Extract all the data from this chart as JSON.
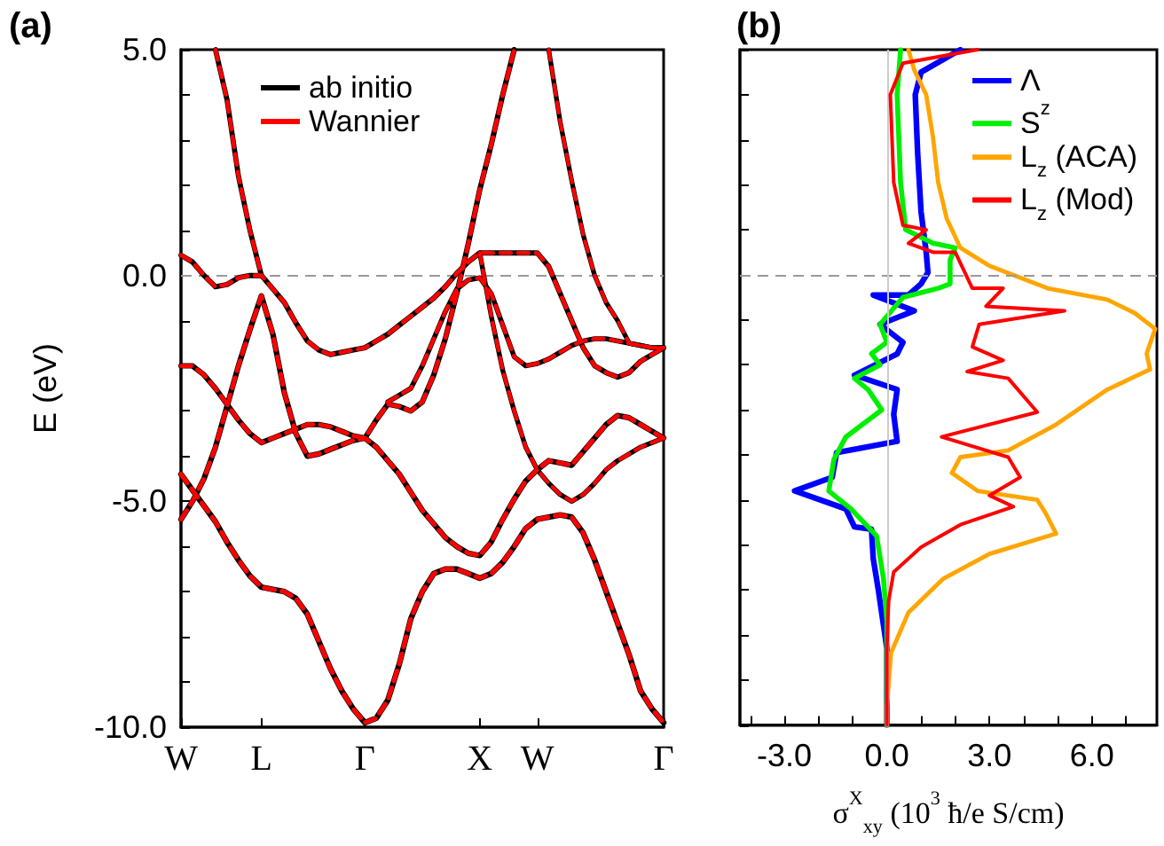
{
  "chart_data": [
    {
      "type": "line",
      "title": "(a)",
      "ylabel": "E (eV)",
      "categories": [
        "W",
        null,
        null,
        null,
        null,
        null,
        null,
        "L",
        null,
        null,
        null,
        null,
        null,
        null,
        null,
        null,
        "Γ",
        null,
        null,
        null,
        null,
        null,
        null,
        null,
        null,
        null,
        "X",
        null,
        null,
        null,
        null,
        "W",
        null,
        null,
        null,
        null,
        null,
        null,
        null,
        null,
        null,
        null,
        "Γ"
      ],
      "ylim": [
        -10,
        5
      ],
      "yticks": [
        {
          "value": -10,
          "label": "-10.0"
        },
        {
          "value": -9,
          "label": null
        },
        {
          "value": -8,
          "label": null
        },
        {
          "value": -7,
          "label": null
        },
        {
          "value": -6,
          "label": null
        },
        {
          "value": -5,
          "label": "-5.0"
        },
        {
          "value": -4,
          "label": null
        },
        {
          "value": -3,
          "label": null
        },
        {
          "value": -2,
          "label": null
        },
        {
          "value": -1,
          "label": null
        },
        {
          "value": 0,
          "label": "0.0"
        },
        {
          "value": 1,
          "label": null
        },
        {
          "value": 2,
          "label": null
        },
        {
          "value": 3,
          "label": null
        },
        {
          "value": 4,
          "label": null
        },
        {
          "value": 5,
          "label": "5.0"
        }
      ],
      "series": [
        {
          "name": "ab initio",
          "color": "#000000",
          "line_style": "solid",
          "values": [
            -4.4,
            -4.75,
            -5.1,
            -5.45,
            -5.9,
            -6.3,
            -6.65,
            -6.9,
            -6.95,
            -7.0,
            -7.15,
            -7.5,
            -8.1,
            -8.7,
            -9.2,
            -9.6,
            -9.9,
            -9.8,
            -9.4,
            -8.6,
            -7.6,
            -7.0,
            -6.6,
            -6.5,
            -6.5,
            -6.6,
            -6.7,
            -6.6,
            -6.35,
            -6.0,
            -5.6,
            -5.4,
            -5.35,
            -5.3,
            -5.35,
            -5.7,
            -6.3,
            -7.0,
            -7.7,
            -8.4,
            -9.2,
            -9.6,
            -9.9
          ]
        },
        {
          "color": "#000000",
          "line_style": "solid",
          "values": [
            -5.4,
            -5.0,
            -4.5,
            -3.8,
            -2.9,
            -2.0,
            -1.2,
            -0.45,
            -1.3,
            -2.6,
            -3.5,
            -4.0,
            -3.95,
            -3.85,
            -3.75,
            -3.65,
            -3.6,
            -3.8,
            -4.1,
            -4.4,
            -4.8,
            -5.2,
            -5.5,
            -5.8,
            -6.0,
            -6.15,
            -6.2,
            -5.9,
            -5.4,
            -4.95,
            -4.55,
            -4.3,
            -4.1,
            -4.15,
            -4.2,
            -3.9,
            -3.6,
            -3.3,
            -3.1,
            -3.15,
            -3.3,
            -3.45,
            -3.6
          ]
        },
        {
          "color": "#000000",
          "line_style": "solid",
          "values": [
            -2.0,
            -2.0,
            -2.2,
            -2.5,
            -2.85,
            -3.2,
            -3.5,
            -3.7,
            -3.6,
            -3.5,
            -3.4,
            -3.3,
            -3.3,
            -3.35,
            -3.45,
            -3.55,
            -3.6,
            -3.2,
            -2.85,
            -2.9,
            -3.0,
            -2.8,
            -2.2,
            -1.4,
            -0.4,
            0.7,
            1.9,
            2.9,
            4.0,
            5.0,
            null,
            null,
            null,
            null,
            null,
            null,
            null,
            null,
            null,
            null,
            null,
            null,
            null
          ]
        },
        {
          "color": "#000000",
          "line_style": "solid",
          "values": [
            0.45,
            0.3,
            0.0,
            -0.25,
            -0.2,
            -0.05,
            0.0,
            0.0,
            -0.3,
            -0.6,
            -1.05,
            -1.45,
            -1.65,
            -1.75,
            -1.7,
            -1.65,
            -1.6,
            -1.45,
            -1.3,
            -1.1,
            -0.9,
            -0.7,
            -0.5,
            -0.25,
            0.05,
            0.3,
            0.5,
            0.5,
            0.5,
            0.5,
            0.5,
            0.5,
            0.2,
            -0.4,
            -1.0,
            -1.6,
            -2.0,
            -2.15,
            -2.25,
            -2.15,
            -1.9,
            -1.75,
            -1.6
          ]
        },
        {
          "color": "#000000",
          "line_style": "solid",
          "values": [
            null,
            null,
            null,
            5.0,
            3.9,
            2.2,
            1.0,
            0.0,
            null,
            null,
            null,
            null,
            null,
            null,
            null,
            null,
            null,
            null,
            null,
            null,
            null,
            null,
            null,
            null,
            null,
            null,
            null,
            null,
            null,
            null,
            null,
            null,
            null,
            null,
            null,
            null,
            null,
            null,
            null,
            null,
            null,
            null,
            null
          ]
        },
        {
          "color": "#000000",
          "line_style": "solid",
          "values": [
            null,
            null,
            null,
            null,
            null,
            null,
            null,
            null,
            null,
            null,
            null,
            null,
            null,
            null,
            null,
            null,
            null,
            null,
            -2.8,
            -2.65,
            -2.5,
            -2.0,
            -1.4,
            -0.8,
            -0.3,
            -0.1,
            -0.05,
            -0.4,
            -1.1,
            -1.8,
            -2.0,
            -1.95,
            -1.85,
            -1.7,
            -1.55,
            -1.45,
            -1.4,
            -1.4,
            -1.45,
            -1.5,
            -1.55,
            -1.6,
            -1.6
          ]
        },
        {
          "color": "#000000",
          "line_style": "solid",
          "values": [
            null,
            null,
            null,
            null,
            null,
            null,
            null,
            null,
            null,
            null,
            null,
            null,
            null,
            null,
            null,
            null,
            null,
            null,
            null,
            null,
            null,
            null,
            null,
            null,
            null,
            null,
            0.5,
            -0.9,
            -2.1,
            -3.0,
            -3.8,
            -4.3,
            -4.6,
            -4.85,
            -5.0,
            -4.85,
            -4.6,
            -4.3,
            -4.1,
            -3.95,
            -3.8,
            -3.7,
            -3.6
          ]
        },
        {
          "color": "#000000",
          "line_style": "solid",
          "values": [
            null,
            null,
            null,
            null,
            null,
            null,
            null,
            null,
            null,
            null,
            null,
            null,
            null,
            null,
            null,
            null,
            null,
            null,
            null,
            null,
            null,
            null,
            null,
            null,
            null,
            null,
            null,
            null,
            null,
            null,
            null,
            null,
            5.0,
            3.4,
            2.1,
            0.9,
            0.0,
            -0.6,
            -1.0,
            -1.5,
            -1.55,
            -1.6,
            -1.6
          ]
        },
        {
          "name": "Wannier",
          "color": "#ff0000",
          "line_style": "dashed",
          "values": [
            -4.4,
            -4.75,
            -5.1,
            -5.45,
            -5.9,
            -6.3,
            -6.65,
            -6.9,
            -6.95,
            -7.0,
            -7.15,
            -7.5,
            -8.1,
            -8.7,
            -9.2,
            -9.6,
            -9.9,
            -9.8,
            -9.4,
            -8.6,
            -7.6,
            -7.0,
            -6.6,
            -6.5,
            -6.5,
            -6.6,
            -6.7,
            -6.6,
            -6.35,
            -6.0,
            -5.6,
            -5.4,
            -5.35,
            -5.3,
            -5.35,
            -5.7,
            -6.3,
            -7.0,
            -7.7,
            -8.4,
            -9.2,
            -9.6,
            -9.9
          ]
        },
        {
          "color": "#ff0000",
          "line_style": "dashed",
          "values": [
            -5.4,
            -5.0,
            -4.5,
            -3.8,
            -2.9,
            -2.0,
            -1.2,
            -0.45,
            -1.3,
            -2.6,
            -3.5,
            -4.0,
            -3.95,
            -3.85,
            -3.75,
            -3.65,
            -3.6,
            -3.8,
            -4.1,
            -4.4,
            -4.8,
            -5.2,
            -5.5,
            -5.8,
            -6.0,
            -6.15,
            -6.2,
            -5.9,
            -5.4,
            -4.95,
            -4.55,
            -4.3,
            -4.1,
            -4.15,
            -4.2,
            -3.9,
            -3.6,
            -3.3,
            -3.1,
            -3.15,
            -3.3,
            -3.45,
            -3.6
          ]
        },
        {
          "color": "#ff0000",
          "line_style": "dashed",
          "values": [
            -2.0,
            -2.0,
            -2.2,
            -2.5,
            -2.85,
            -3.2,
            -3.5,
            -3.7,
            -3.6,
            -3.5,
            -3.4,
            -3.3,
            -3.3,
            -3.35,
            -3.45,
            -3.55,
            -3.6,
            -3.2,
            -2.85,
            -2.9,
            -3.0,
            -2.8,
            -2.2,
            -1.4,
            -0.4,
            0.7,
            1.9,
            2.9,
            4.0,
            5.0,
            null,
            null,
            null,
            null,
            null,
            null,
            null,
            null,
            null,
            null,
            null,
            null,
            null
          ]
        },
        {
          "color": "#ff0000",
          "line_style": "dashed",
          "values": [
            0.45,
            0.3,
            0.0,
            -0.25,
            -0.2,
            -0.05,
            0.0,
            0.0,
            -0.3,
            -0.6,
            -1.05,
            -1.45,
            -1.65,
            -1.75,
            -1.7,
            -1.65,
            -1.6,
            -1.45,
            -1.3,
            -1.1,
            -0.9,
            -0.7,
            -0.5,
            -0.25,
            0.05,
            0.3,
            0.5,
            0.5,
            0.5,
            0.5,
            0.5,
            0.5,
            0.2,
            -0.4,
            -1.0,
            -1.6,
            -2.0,
            -2.15,
            -2.25,
            -2.15,
            -1.9,
            -1.75,
            -1.6
          ]
        },
        {
          "color": "#ff0000",
          "line_style": "dashed",
          "values": [
            null,
            null,
            null,
            5.0,
            3.9,
            2.2,
            1.0,
            0.0,
            null,
            null,
            null,
            null,
            null,
            null,
            null,
            null,
            null,
            null,
            null,
            null,
            null,
            null,
            null,
            null,
            null,
            null,
            null,
            null,
            null,
            null,
            null,
            null,
            null,
            null,
            null,
            null,
            null,
            null,
            null,
            null,
            null,
            null,
            null
          ]
        },
        {
          "color": "#ff0000",
          "line_style": "dashed",
          "values": [
            null,
            null,
            null,
            null,
            null,
            null,
            null,
            null,
            null,
            null,
            null,
            null,
            null,
            null,
            null,
            null,
            null,
            null,
            -2.8,
            -2.65,
            -2.5,
            -2.0,
            -1.4,
            -0.8,
            -0.3,
            -0.1,
            -0.05,
            -0.4,
            -1.1,
            -1.8,
            -2.0,
            -1.95,
            -1.85,
            -1.7,
            -1.55,
            -1.45,
            -1.4,
            -1.4,
            -1.45,
            -1.5,
            -1.55,
            -1.6,
            -1.6
          ]
        },
        {
          "color": "#ff0000",
          "line_style": "dashed",
          "values": [
            null,
            null,
            null,
            null,
            null,
            null,
            null,
            null,
            null,
            null,
            null,
            null,
            null,
            null,
            null,
            null,
            null,
            null,
            null,
            null,
            null,
            null,
            null,
            null,
            null,
            null,
            0.5,
            -0.9,
            -2.1,
            -3.0,
            -3.8,
            -4.3,
            -4.6,
            -4.85,
            -5.0,
            -4.85,
            -4.6,
            -4.3,
            -4.1,
            -3.95,
            -3.8,
            -3.7,
            -3.6
          ]
        },
        {
          "color": "#ff0000",
          "line_style": "dashed",
          "values": [
            null,
            null,
            null,
            null,
            null,
            null,
            null,
            null,
            null,
            null,
            null,
            null,
            null,
            null,
            null,
            null,
            null,
            null,
            null,
            null,
            null,
            null,
            null,
            null,
            null,
            null,
            null,
            null,
            null,
            null,
            null,
            null,
            5.0,
            3.4,
            2.1,
            0.9,
            0.0,
            -0.6,
            -1.0,
            -1.5,
            -1.55,
            -1.6,
            -1.6
          ]
        }
      ],
      "ref_lines": [
        {
          "axis": "y",
          "value": 0,
          "label": null,
          "color": "#999999",
          "line_style": "dashed"
        }
      ],
      "legend": "top left",
      "grid": false,
      "marker": "none"
    },
    {
      "type": "line",
      "title": "(b)",
      "xlabel": "σ$^{X}$$_{xy}$ (10$^{3}$ ħ/e S/cm)",
      "xlim": [
        -4.3,
        7.9
      ],
      "xticks": [
        {
          "value": -4,
          "label": null
        },
        {
          "value": -3,
          "label": "-3.0"
        },
        {
          "value": -2,
          "label": null
        },
        {
          "value": -1,
          "label": null
        },
        {
          "value": 0,
          "label": "0.0"
        },
        {
          "value": 1,
          "label": null
        },
        {
          "value": 2,
          "label": null
        },
        {
          "value": 3,
          "label": "3.0"
        },
        {
          "value": 4,
          "label": null
        },
        {
          "value": 5,
          "label": null
        },
        {
          "value": 6,
          "label": "6.0"
        },
        {
          "value": 7,
          "label": null
        }
      ],
      "ylim": [
        -10,
        5
      ],
      "yticks": [
        {
          "value": -10,
          "label": null
        },
        {
          "value": -9,
          "label": null
        },
        {
          "value": -8,
          "label": null
        },
        {
          "value": -7,
          "label": null
        },
        {
          "value": -6,
          "label": null
        },
        {
          "value": -5,
          "label": null
        },
        {
          "value": -4,
          "label": null
        },
        {
          "value": -3,
          "label": null
        },
        {
          "value": -2,
          "label": null
        },
        {
          "value": -1,
          "label": null
        },
        {
          "value": 0,
          "label": null
        },
        {
          "value": 1,
          "label": null
        },
        {
          "value": 2,
          "label": null
        },
        {
          "value": 3,
          "label": null
        },
        {
          "value": 4,
          "label": null
        },
        {
          "value": 5,
          "label": null
        }
      ],
      "tick_labels": "x",
      "series": [
        {
          "name": "Λ",
          "color": "#0000ff",
          "x": [
            2.15,
            1.0,
            0.83,
            0.9,
            1.0,
            1.15,
            1.2,
            1.0,
            0.63,
            -0.4,
            0.8,
            -0.2,
            0.47,
            0.3,
            -0.95,
            0.3,
            0.2,
            0.3,
            -1.47,
            -1.6,
            -2.7,
            -1.2,
            -0.95,
            -0.45,
            -0.4,
            -0.25,
            0.0,
            0.0
          ],
          "values": [
            5.0,
            4.5,
            4.0,
            2.7,
            1.4,
            0.5,
            0.05,
            -0.2,
            -0.45,
            -0.45,
            -0.8,
            -1.1,
            -1.5,
            -1.76,
            -2.23,
            -2.55,
            -3.1,
            -3.7,
            -3.95,
            -4.5,
            -4.8,
            -5.2,
            -5.6,
            -5.65,
            -6.3,
            -7.0,
            -8.3,
            -10.0
          ]
        },
        {
          "name": "S$^{z}$",
          "color": "#00ee00",
          "x": [
            0.4,
            0.3,
            0.4,
            0.55,
            1.35,
            2.0,
            1.85,
            1.85,
            1.5,
            0.47,
            -0.2,
            0.0,
            -0.45,
            -0.2,
            -0.95,
            -0.55,
            -0.15,
            -1.2,
            -1.55,
            -1.7,
            -1.05,
            -0.3,
            -0.1,
            0.0,
            0.0
          ],
          "values": [
            5.0,
            4.0,
            2.05,
            1.0,
            0.7,
            0.6,
            0.33,
            -0.2,
            -0.3,
            -0.5,
            -1.1,
            -1.5,
            -1.75,
            -2.0,
            -2.3,
            -2.55,
            -3.0,
            -3.6,
            -4.1,
            -4.8,
            -5.2,
            -5.8,
            -6.75,
            -7.7,
            -10.0
          ]
        },
        {
          "name": "L$_{z}$ (ACA)",
          "color": "#ffa500",
          "x": [
            0.63,
            0.8,
            1.15,
            1.35,
            1.5,
            1.75,
            2.15,
            3.0,
            4.7,
            6.45,
            7.25,
            7.85,
            7.6,
            7.7,
            6.45,
            4.9,
            3.55,
            2.15,
            1.9,
            2.65,
            4.4,
            4.65,
            4.95,
            3.0,
            1.65,
            0.63,
            0.12,
            0.0,
            0.0
          ],
          "values": [
            5.0,
            4.55,
            4.0,
            3.05,
            2.05,
            1.25,
            0.6,
            0.2,
            -0.3,
            -0.55,
            -0.85,
            -1.2,
            -1.75,
            -2.1,
            -2.55,
            -3.35,
            -3.9,
            -4.05,
            -4.4,
            -4.8,
            -5.0,
            -5.3,
            -5.75,
            -6.2,
            -6.75,
            -7.5,
            -8.4,
            -9.6,
            -10.0
          ]
        },
        {
          "name": "L$_{z}$ (Mod)",
          "color": "#ff0000",
          "x": [
            2.65,
            0.47,
            0.1,
            0.2,
            0.47,
            1.15,
            0.63,
            1.35,
            2.0,
            2.5,
            3.4,
            2.9,
            5.2,
            2.7,
            2.5,
            3.4,
            2.35,
            3.55,
            4.4,
            1.6,
            3.55,
            3.9,
            3.0,
            3.7,
            2.15,
            1.0,
            0.2,
            0.05,
            0.0,
            0.0
          ],
          "values": [
            5.0,
            4.7,
            4.0,
            2.05,
            1.1,
            1.0,
            0.7,
            0.5,
            0.5,
            -0.3,
            -0.3,
            -0.7,
            -0.8,
            -1.1,
            -1.6,
            -1.9,
            -2.15,
            -2.3,
            -3.05,
            -3.6,
            -4.05,
            -4.5,
            -4.9,
            -5.15,
            -5.55,
            -6.05,
            -6.6,
            -7.25,
            -8.3,
            -10.0
          ]
        }
      ],
      "ref_lines": [
        {
          "axis": "y",
          "value": 0,
          "label": null,
          "color": "#999999",
          "line_style": "dashed"
        },
        {
          "axis": "x",
          "value": 0,
          "label": null,
          "color": "#cccccc",
          "line_style": "solid"
        }
      ],
      "legend": "top right",
      "grid": false,
      "marker": "none",
      "line_style": "solid"
    }
  ]
}
